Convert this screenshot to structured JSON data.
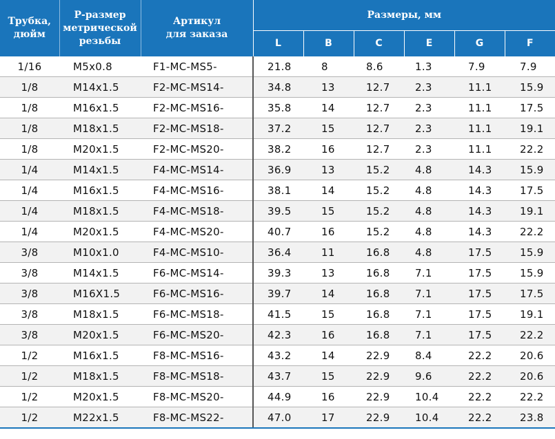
{
  "header": {
    "tube": [
      "Трубка,",
      "дюйм"
    ],
    "thread": [
      "Р-размер",
      "метрической",
      "резьбы"
    ],
    "article": [
      "Артикул",
      "для заказа"
    ],
    "dimensions": "Размеры, мм",
    "dim_labels": [
      "L",
      "B",
      "C",
      "E",
      "G",
      "F"
    ]
  },
  "rows": [
    {
      "tube": "1/16",
      "thread": "M5x0.8",
      "article": "F1-MC-MS5-",
      "L": "21.8",
      "B": "8",
      "C": "8.6",
      "E": "1.3",
      "G": "7.9",
      "F": "7.9"
    },
    {
      "tube": "1/8",
      "thread": "M14x1.5",
      "article": "F2-MC-MS14-",
      "L": "34.8",
      "B": "13",
      "C": "12.7",
      "E": "2.3",
      "G": "11.1",
      "F": "15.9"
    },
    {
      "tube": "1/8",
      "thread": "M16x1.5",
      "article": "F2-MC-MS16-",
      "L": "35.8",
      "B": "14",
      "C": "12.7",
      "E": "2.3",
      "G": "11.1",
      "F": "17.5"
    },
    {
      "tube": "1/8",
      "thread": "M18x1.5",
      "article": "F2-MC-MS18-",
      "L": "37.2",
      "B": "15",
      "C": "12.7",
      "E": "2.3",
      "G": "11.1",
      "F": "19.1"
    },
    {
      "tube": "1/8",
      "thread": "M20x1.5",
      "article": "F2-MC-MS20-",
      "L": "38.2",
      "B": "16",
      "C": "12.7",
      "E": "2.3",
      "G": "11.1",
      "F": "22.2"
    },
    {
      "tube": "1/4",
      "thread": "M14x1.5",
      "article": "F4-MC-MS14-",
      "L": "36.9",
      "B": "13",
      "C": "15.2",
      "E": "4.8",
      "G": "14.3",
      "F": "15.9"
    },
    {
      "tube": "1/4",
      "thread": "M16x1.5",
      "article": "F4-MC-MS16-",
      "L": "38.1",
      "B": "14",
      "C": "15.2",
      "E": "4.8",
      "G": "14.3",
      "F": "17.5"
    },
    {
      "tube": "1/4",
      "thread": "M18x1.5",
      "article": "F4-MC-MS18-",
      "L": "39.5",
      "B": "15",
      "C": "15.2",
      "E": "4.8",
      "G": "14.3",
      "F": "19.1"
    },
    {
      "tube": "1/4",
      "thread": "M20x1.5",
      "article": "F4-MC-MS20-",
      "L": "40.7",
      "B": "16",
      "C": "15.2",
      "E": "4.8",
      "G": "14.3",
      "F": "22.2"
    },
    {
      "tube": "3/8",
      "thread": "M10x1.0",
      "article": "F4-MC-MS10-",
      "L": "36.4",
      "B": "11",
      "C": "16.8",
      "E": "4.8",
      "G": "17.5",
      "F": "15.9"
    },
    {
      "tube": "3/8",
      "thread": "M14x1.5",
      "article": "F6-MC-MS14-",
      "L": "39.3",
      "B": "13",
      "C": "16.8",
      "E": "7.1",
      "G": "17.5",
      "F": "15.9"
    },
    {
      "tube": "3/8",
      "thread": "M16X1.5",
      "article": "F6-MC-MS16-",
      "L": "39.7",
      "B": "14",
      "C": "16.8",
      "E": "7.1",
      "G": "17.5",
      "F": "17.5"
    },
    {
      "tube": "3/8",
      "thread": "M18x1.5",
      "article": "F6-MC-MS18-",
      "L": "41.5",
      "B": "15",
      "C": "16.8",
      "E": "7.1",
      "G": "17.5",
      "F": "19.1"
    },
    {
      "tube": "3/8",
      "thread": "M20x1.5",
      "article": "F6-MC-MS20-",
      "L": "42.3",
      "B": "16",
      "C": "16.8",
      "E": "7.1",
      "G": "17.5",
      "F": "22.2"
    },
    {
      "tube": "1/2",
      "thread": "M16x1.5",
      "article": "F8-MC-MS16-",
      "L": "43.2",
      "B": "14",
      "C": "22.9",
      "E": "8.4",
      "G": "22.2",
      "F": "20.6"
    },
    {
      "tube": "1/2",
      "thread": "M18x1.5",
      "article": "F8-MC-MS18-",
      "L": "43.7",
      "B": "15",
      "C": "22.9",
      "E": "9.6",
      "G": "22.2",
      "F": "20.6"
    },
    {
      "tube": "1/2",
      "thread": "M20x1.5",
      "article": "F8-MC-MS20-",
      "L": "44.9",
      "B": "16",
      "C": "22.9",
      "E": "10.4",
      "G": "22.2",
      "F": "22.2"
    },
    {
      "tube": "1/2",
      "thread": "M22x1.5",
      "article": "F8-MC-MS22-",
      "L": "47.0",
      "B": "17",
      "C": "22.9",
      "E": "10.4",
      "G": "22.2",
      "F": "23.8"
    }
  ]
}
